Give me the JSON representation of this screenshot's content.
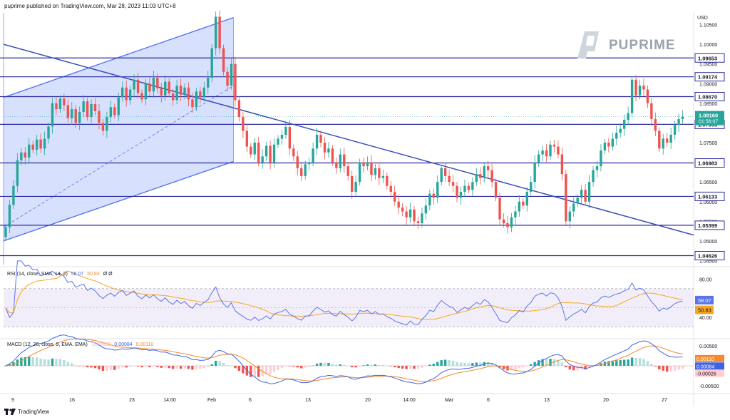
{
  "header": {
    "text": "puprime published on TradingView.com, Mar 28, 2023 11:03 UTC+8"
  },
  "brand": {
    "name": "PUPRIME"
  },
  "footer": {
    "logo_text": "TradingView"
  },
  "colors": {
    "up": "#26a69a",
    "down": "#ef5350",
    "level": "#2b2b9f",
    "trend": "#3b4fb8",
    "channel": "#4f6ef7",
    "channel_fill": "#c9d6fb",
    "rsi": "#5b74e8",
    "rsi_ma": "#f5a623",
    "macd": "#3f63e6",
    "signal": "#f28b30"
  },
  "chart_data": [
    {
      "type": "candlestick",
      "currency": "USD",
      "y_ticks": [
        "1.10500",
        "1.10000",
        "1.09500",
        "1.09000",
        "1.08500",
        "1.08000",
        "1.07500",
        "1.07000",
        "1.06500",
        "1.06000",
        "1.05500",
        "1.05000",
        "1.04500"
      ],
      "ylim": [
        1.044,
        1.108
      ],
      "x_ticks": [
        "9",
        "16",
        "23",
        "14:00",
        "Feb",
        "6",
        "13",
        "20",
        "14:00",
        "Mar",
        "6",
        "13",
        "20",
        "27"
      ],
      "horizontal_levels": [
        "1.09653",
        "1.09174",
        "1.08670",
        "1.07965",
        "1.06983",
        "1.06133",
        "1.05399",
        "1.04626"
      ],
      "current_price": {
        "value": "1.08160",
        "countdown": "01:56:07"
      },
      "closes": [
        1.0535,
        1.0592,
        1.064,
        1.0705,
        1.0725,
        1.0712,
        1.0745,
        1.0732,
        1.0758,
        1.0735,
        1.076,
        1.0791,
        1.085,
        1.0835,
        1.0862,
        1.0845,
        1.0812,
        1.0835,
        1.08,
        1.0828,
        1.0855,
        1.0815,
        1.0848,
        1.083,
        1.08,
        1.078,
        1.0815,
        1.084,
        1.082,
        1.0865,
        1.089,
        1.0858,
        1.0885,
        1.091,
        1.0876,
        1.086,
        1.09,
        1.088,
        1.0915,
        1.0888,
        1.087,
        1.0905,
        1.0875,
        1.0858,
        1.0895,
        1.0872,
        1.089,
        1.086,
        1.084,
        1.088,
        1.0865,
        1.089,
        1.0915,
        1.099,
        1.107,
        1.099,
        1.093,
        1.0895,
        1.095,
        1.0858,
        1.0815,
        1.078,
        1.074,
        1.072,
        1.075,
        1.07,
        1.0715,
        1.0742,
        1.07,
        1.0745,
        1.076,
        1.077,
        1.079,
        1.0735,
        1.0715,
        1.0685,
        1.0665,
        1.0695,
        1.07,
        1.0735,
        1.077,
        1.075,
        1.0725,
        1.0735,
        1.07,
        1.0685,
        1.072,
        1.069,
        1.0665,
        1.0625,
        1.065,
        1.07,
        1.069,
        1.07,
        1.0668,
        1.0685,
        1.066,
        1.0665,
        1.064,
        1.0625,
        1.06,
        1.0585,
        1.0575,
        1.056,
        1.058,
        1.055,
        1.0545,
        1.057,
        1.059,
        1.062,
        1.061,
        1.065,
        1.0685,
        1.0665,
        1.065,
        1.064,
        1.061,
        1.0625,
        1.064,
        1.063,
        1.065,
        1.067,
        1.066,
        1.069,
        1.068,
        1.065,
        1.061,
        1.0555,
        1.0545,
        1.0535,
        1.056,
        1.0575,
        1.06,
        1.059,
        1.0625,
        1.065,
        1.07,
        1.072,
        1.073,
        1.0715,
        1.0745,
        1.074,
        1.072,
        1.067,
        1.055,
        1.0575,
        1.0595,
        1.061,
        1.063,
        1.06,
        1.065,
        1.068,
        1.069,
        1.073,
        1.075,
        1.074,
        1.076,
        1.0775,
        1.0785,
        1.0808,
        1.0825,
        1.091,
        1.087,
        1.0895,
        1.0885,
        1.085,
        1.081,
        1.078,
        1.0735,
        1.076,
        1.075,
        1.077,
        1.0795,
        1.081,
        1.0816
      ],
      "channel_box_end_index": 58
    },
    {
      "type": "line",
      "label": "RSI (14, close, SMA, 14, 2)",
      "legend_values": [
        "58.07",
        "50.83"
      ],
      "extra_marks": "Ø Ø",
      "y_ticks": [
        "80.00",
        "40.00"
      ],
      "ylim": [
        20,
        90
      ],
      "band": [
        70,
        30
      ],
      "series": [
        {
          "name": "RSI",
          "current": "58.07"
        },
        {
          "name": "RSI-based MA",
          "current": "50.83"
        }
      ]
    },
    {
      "type": "histogram-line",
      "label": "MACD (12, 26, close, 9, EMA, EMA)",
      "legend_values": [
        "-0.00026",
        "0.00084",
        "0.00110"
      ],
      "y_ticks": [
        "0.00500",
        "-0.00500"
      ],
      "ylim": [
        -0.0062,
        0.0062
      ],
      "series": [
        {
          "name": "Histogram",
          "current": "-0.00026"
        },
        {
          "name": "MACD",
          "current": "0.00084"
        },
        {
          "name": "Signal",
          "current": "0.00110"
        }
      ]
    }
  ]
}
